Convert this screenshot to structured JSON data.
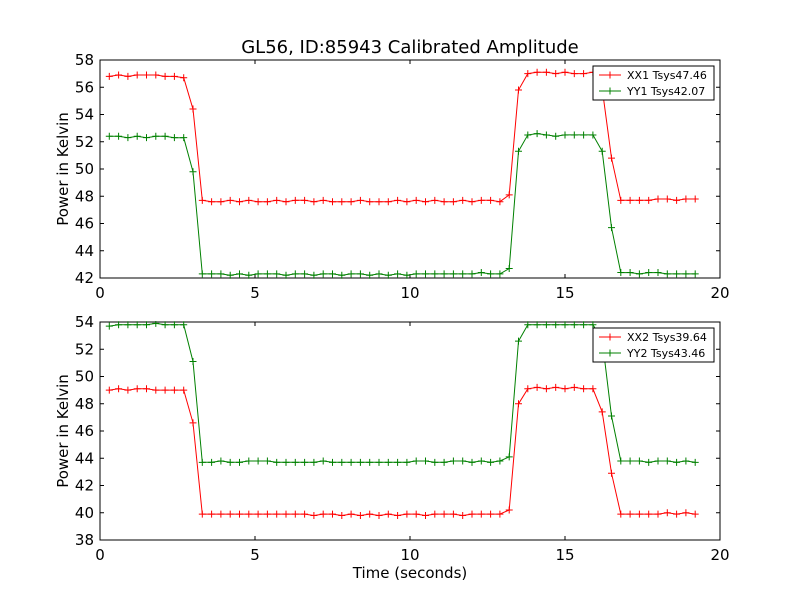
{
  "title": "GL56, ID:85943 Calibrated Amplitude",
  "colors": {
    "xx": "#ff0000",
    "yy": "#008000",
    "axes": "#000000"
  },
  "chart_data": [
    {
      "type": "line",
      "ylabel": "Power in Kelvin",
      "xlabel": "",
      "xlim": [
        0,
        20
      ],
      "ylim": [
        42,
        58
      ],
      "xticks": [
        0,
        5,
        10,
        15,
        20
      ],
      "yticks": [
        42,
        44,
        46,
        48,
        50,
        52,
        54,
        56,
        58
      ],
      "legend_position": "top-right",
      "x": [
        0.3,
        0.6,
        0.9,
        1.2,
        1.5,
        1.8,
        2.1,
        2.4,
        2.7,
        3.0,
        3.3,
        3.6,
        3.9,
        4.2,
        4.5,
        4.8,
        5.1,
        5.4,
        5.7,
        6.0,
        6.3,
        6.6,
        6.9,
        7.2,
        7.5,
        7.8,
        8.1,
        8.4,
        8.7,
        9.0,
        9.3,
        9.6,
        9.9,
        10.2,
        10.5,
        10.8,
        11.1,
        11.4,
        11.7,
        12.0,
        12.3,
        12.6,
        12.9,
        13.2,
        13.5,
        13.8,
        14.1,
        14.4,
        14.7,
        15.0,
        15.3,
        15.6,
        15.9,
        16.2,
        16.5,
        16.8,
        17.1,
        17.4,
        17.7,
        18.0,
        18.3,
        18.6,
        18.9,
        19.2
      ],
      "series": [
        {
          "name": "XX1 Tsys47.46",
          "color": "#ff0000",
          "values": [
            56.8,
            56.9,
            56.8,
            56.9,
            56.9,
            56.9,
            56.8,
            56.8,
            56.7,
            54.4,
            47.7,
            47.6,
            47.6,
            47.7,
            47.6,
            47.7,
            47.6,
            47.6,
            47.7,
            47.6,
            47.7,
            47.7,
            47.6,
            47.7,
            47.6,
            47.6,
            47.6,
            47.7,
            47.6,
            47.6,
            47.6,
            47.7,
            47.6,
            47.7,
            47.6,
            47.7,
            47.6,
            47.6,
            47.7,
            47.6,
            47.7,
            47.7,
            47.6,
            48.1,
            55.8,
            57.0,
            57.1,
            57.1,
            57.0,
            57.1,
            57.0,
            57.0,
            57.1,
            55.9,
            50.8,
            47.7,
            47.7,
            47.7,
            47.7,
            47.8,
            47.8,
            47.7,
            47.8,
            47.8
          ]
        },
        {
          "name": "YY1 Tsys42.07",
          "color": "#008000",
          "values": [
            52.4,
            52.4,
            52.3,
            52.4,
            52.3,
            52.4,
            52.4,
            52.3,
            52.3,
            49.8,
            42.3,
            42.3,
            42.3,
            42.2,
            42.3,
            42.2,
            42.3,
            42.3,
            42.3,
            42.2,
            42.3,
            42.3,
            42.2,
            42.3,
            42.3,
            42.2,
            42.3,
            42.3,
            42.2,
            42.3,
            42.2,
            42.3,
            42.2,
            42.3,
            42.3,
            42.3,
            42.3,
            42.3,
            42.3,
            42.3,
            42.4,
            42.3,
            42.3,
            42.7,
            51.3,
            52.5,
            52.6,
            52.5,
            52.4,
            52.5,
            52.5,
            52.5,
            52.5,
            51.3,
            45.7,
            42.4,
            42.4,
            42.3,
            42.4,
            42.4,
            42.3,
            42.3,
            42.3,
            42.3
          ]
        }
      ]
    },
    {
      "type": "line",
      "ylabel": "Power in Kelvin",
      "xlabel": "Time (seconds)",
      "xlim": [
        0,
        20
      ],
      "ylim": [
        38,
        54
      ],
      "xticks": [
        0,
        5,
        10,
        15,
        20
      ],
      "yticks": [
        38,
        40,
        42,
        44,
        46,
        48,
        50,
        52,
        54
      ],
      "legend_position": "top-right",
      "x": [
        0.3,
        0.6,
        0.9,
        1.2,
        1.5,
        1.8,
        2.1,
        2.4,
        2.7,
        3.0,
        3.3,
        3.6,
        3.9,
        4.2,
        4.5,
        4.8,
        5.1,
        5.4,
        5.7,
        6.0,
        6.3,
        6.6,
        6.9,
        7.2,
        7.5,
        7.8,
        8.1,
        8.4,
        8.7,
        9.0,
        9.3,
        9.6,
        9.9,
        10.2,
        10.5,
        10.8,
        11.1,
        11.4,
        11.7,
        12.0,
        12.3,
        12.6,
        12.9,
        13.2,
        13.5,
        13.8,
        14.1,
        14.4,
        14.7,
        15.0,
        15.3,
        15.6,
        15.9,
        16.2,
        16.5,
        16.8,
        17.1,
        17.4,
        17.7,
        18.0,
        18.3,
        18.6,
        18.9,
        19.2
      ],
      "series": [
        {
          "name": "XX2 Tsys39.64",
          "color": "#ff0000",
          "values": [
            49.0,
            49.1,
            49.0,
            49.1,
            49.1,
            49.0,
            49.0,
            49.0,
            49.0,
            46.6,
            39.9,
            39.9,
            39.9,
            39.9,
            39.9,
            39.9,
            39.9,
            39.9,
            39.9,
            39.9,
            39.9,
            39.9,
            39.8,
            39.9,
            39.9,
            39.8,
            39.9,
            39.8,
            39.9,
            39.8,
            39.9,
            39.8,
            39.9,
            39.9,
            39.8,
            39.9,
            39.9,
            39.9,
            39.8,
            39.9,
            39.9,
            39.9,
            39.9,
            40.2,
            48.0,
            49.1,
            49.2,
            49.1,
            49.2,
            49.1,
            49.2,
            49.1,
            49.1,
            47.4,
            42.9,
            39.9,
            39.9,
            39.9,
            39.9,
            39.9,
            40.0,
            39.9,
            40.0,
            39.9
          ]
        },
        {
          "name": "YY2 Tsys43.46",
          "color": "#008000",
          "values": [
            53.7,
            53.8,
            53.8,
            53.8,
            53.8,
            53.9,
            53.8,
            53.8,
            53.8,
            51.1,
            43.7,
            43.7,
            43.8,
            43.7,
            43.7,
            43.8,
            43.8,
            43.8,
            43.7,
            43.7,
            43.7,
            43.7,
            43.7,
            43.8,
            43.7,
            43.7,
            43.7,
            43.7,
            43.7,
            43.7,
            43.7,
            43.7,
            43.7,
            43.8,
            43.8,
            43.7,
            43.7,
            43.8,
            43.8,
            43.7,
            43.8,
            43.7,
            43.8,
            44.1,
            52.6,
            53.8,
            53.8,
            53.8,
            53.8,
            53.8,
            53.8,
            53.8,
            53.8,
            52.7,
            47.1,
            43.8,
            43.8,
            43.8,
            43.7,
            43.8,
            43.8,
            43.7,
            43.8,
            43.7
          ]
        }
      ]
    }
  ]
}
